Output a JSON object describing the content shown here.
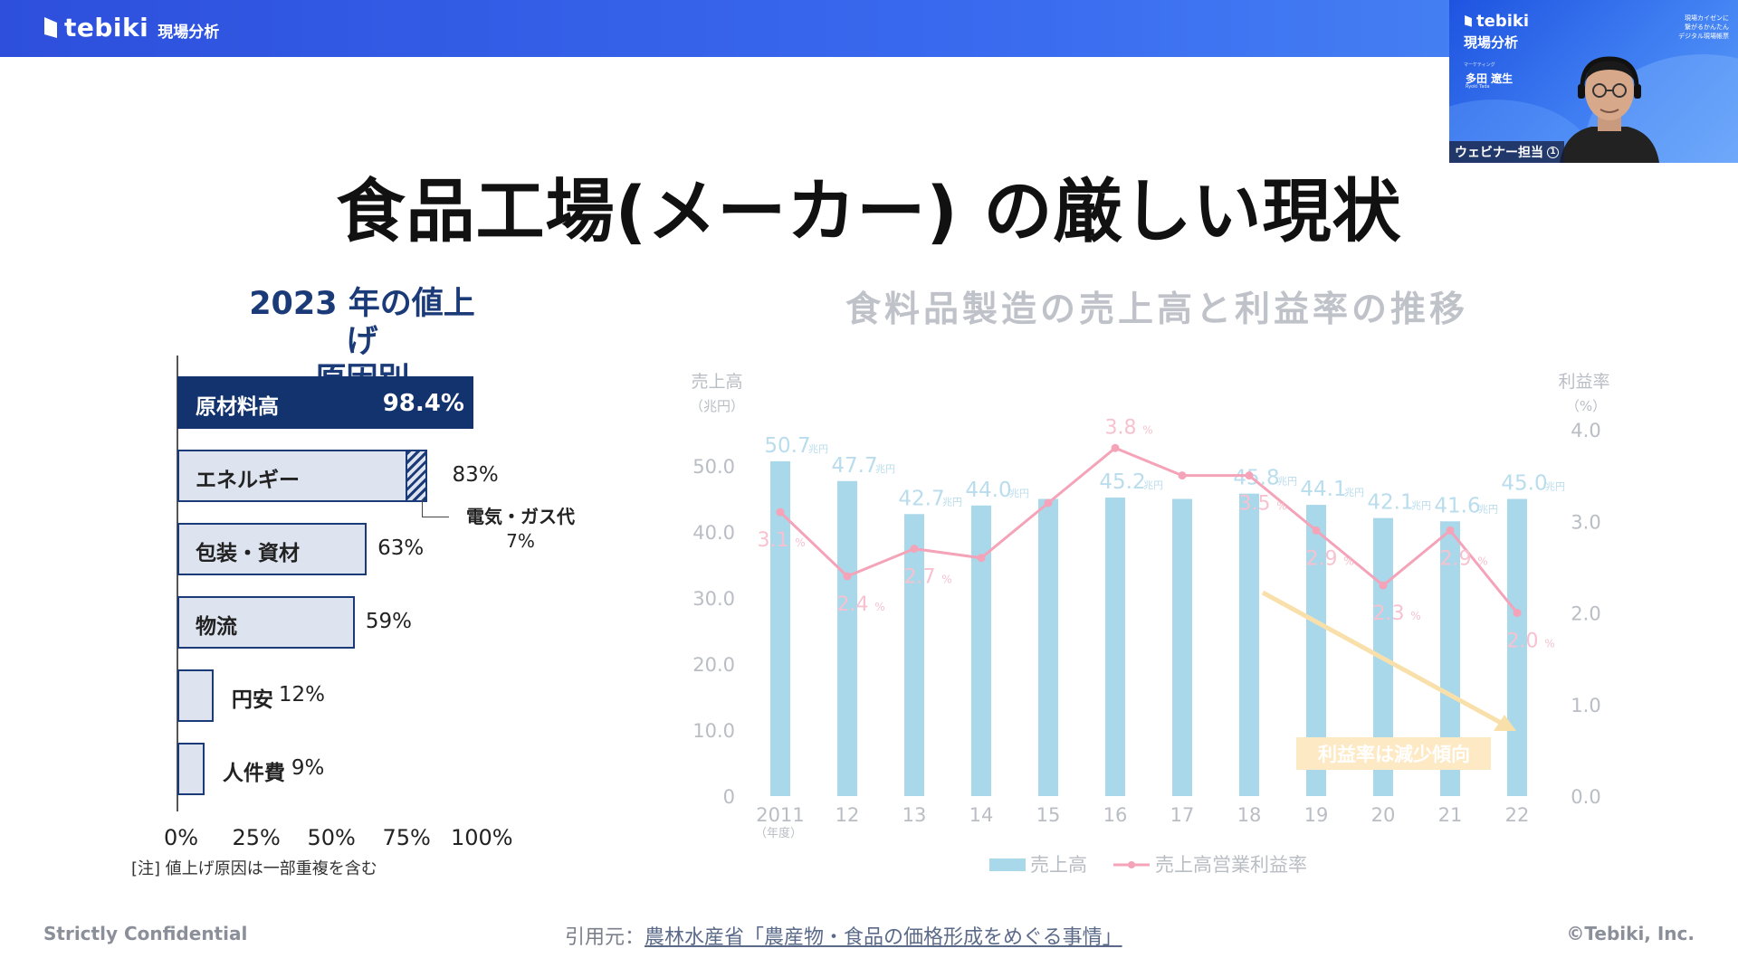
{
  "header": {
    "brand_name": "tebiki",
    "brand_sub": "現場分析"
  },
  "video": {
    "brand_name": "tebiki",
    "brand_sub": "現場分析",
    "tagline": "現場カイゼンに\n繋がるかんたん\nデジタル現場帳票",
    "tag": "マーケティング",
    "person_name": "多田 遼生",
    "person_name_en": "Ryoki Tada",
    "label": "ウェビナー担当",
    "label_num": "1"
  },
  "slide": {
    "title": "食品工場(メーカー) の厳しい現状",
    "left_chart": {
      "title_line1": "2023 年の値上げ",
      "title_line2": "原因別",
      "note": "[注] 値上げ原因は一部重複を含む",
      "callout_line1": "電気・ガス代",
      "callout_line2": "7%"
    },
    "right_chart": {
      "title": "食料品製造の売上高と利益率の推移",
      "left_axis_title": "売上高",
      "left_axis_unit": "（兆円）",
      "right_axis_title": "利益率",
      "right_axis_unit": "（%）",
      "x_unit": "（年度）",
      "annotation": "利益率は減少傾向",
      "legend_bar": "売上高",
      "legend_line": "売上高営業利益率"
    }
  },
  "footer": {
    "left": "Strictly Confidential",
    "source_prefix": "引用元：",
    "source_link": "農林水産省「農産物・食品の価格形成をめぐる事情」",
    "right": "©Tebiki, Inc."
  },
  "chart_data": [
    {
      "type": "bar",
      "orientation": "horizontal",
      "categories": [
        "原材料高",
        "エネルギー",
        "包装・資材",
        "物流",
        "円安",
        "人件費"
      ],
      "values": [
        98.4,
        83,
        63,
        59,
        12,
        9
      ],
      "value_labels": [
        "98.4%",
        "83%",
        "63%",
        "59%",
        "12%",
        "9%"
      ],
      "sub_segment": {
        "category": "エネルギー",
        "name": "電気・ガス代",
        "value": 7
      },
      "x_ticks": [
        "0%",
        "25%",
        "50%",
        "75%",
        "100%"
      ],
      "xlim": [
        0,
        100
      ],
      "title": "2023 年の値上げ原因別"
    },
    {
      "type": "bar+line",
      "title": "食料品製造の売上高と利益率の推移",
      "categories": [
        "2011",
        "12",
        "13",
        "14",
        "15",
        "16",
        "17",
        "18",
        "19",
        "20",
        "21",
        "22"
      ],
      "series": [
        {
          "name": "売上高",
          "axis": "left",
          "values": [
            50.7,
            47.7,
            42.7,
            44.0,
            45.0,
            45.2,
            45.0,
            45.8,
            44.1,
            42.1,
            41.6,
            45.0
          ],
          "labels": [
            "50.7",
            "47.7",
            "42.7",
            "44.0",
            "",
            "45.2",
            "",
            "45.8",
            "44.1",
            "42.1",
            "41.6",
            "45.0"
          ],
          "label_unit": "兆円"
        },
        {
          "name": "売上高営業利益率",
          "axis": "right",
          "values": [
            3.1,
            2.4,
            2.7,
            2.6,
            3.2,
            3.8,
            3.5,
            3.5,
            2.9,
            2.3,
            2.9,
            2.0
          ],
          "labels": [
            "3.1",
            "2.4",
            "2.7",
            "",
            "",
            "3.8",
            "",
            "3.5",
            "2.9",
            "2.3",
            "2.9",
            "2.0"
          ],
          "label_unit": "%"
        }
      ],
      "y_left_ticks": [
        "0",
        "10.0",
        "20.0",
        "30.0",
        "40.0",
        "50.0"
      ],
      "y_left_lim": [
        0,
        55
      ],
      "y_right_ticks": [
        "0.0",
        "1.0",
        "2.0",
        "3.0",
        "4.0"
      ],
      "y_right_lim": [
        0,
        4.0
      ],
      "colors": {
        "bar": "#a9d8ea",
        "line": "#f4a3b8",
        "annotation": "#fde9c4",
        "arrow": "#f9e0aa"
      }
    }
  ]
}
